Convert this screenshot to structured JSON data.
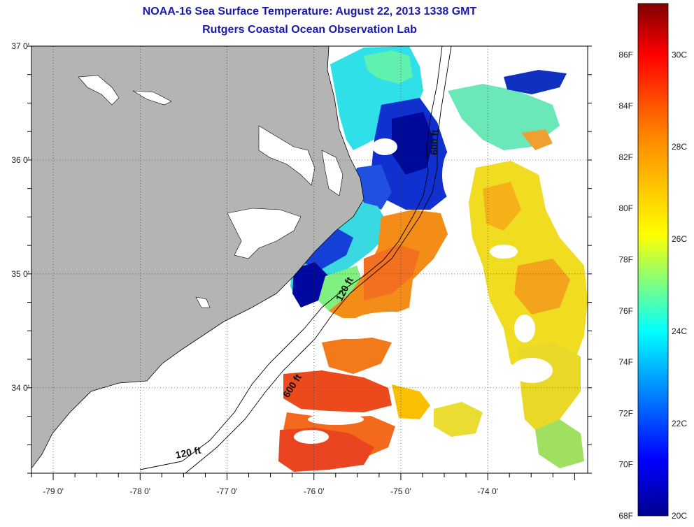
{
  "title": "NOAA-16 Sea Surface Temperature:  August 22, 2013 1338 GMT",
  "subtitle": "Rutgers Coastal Ocean Observation Lab",
  "map": {
    "lon_range": [
      -79.25,
      -72.85
    ],
    "lat_range": [
      33.25,
      37.0
    ],
    "lon_ticks": [
      {
        "value": -79,
        "label": "-79 0'"
      },
      {
        "value": -78,
        "label": "-78 0'"
      },
      {
        "value": -77,
        "label": "-77 0'"
      },
      {
        "value": -76,
        "label": "-76 0'"
      },
      {
        "value": -75,
        "label": "-75 0'"
      },
      {
        "value": -74,
        "label": "-74 0'"
      }
    ],
    "lat_ticks": [
      {
        "value": 37,
        "label": "37 0'"
      },
      {
        "value": 36,
        "label": "36 0'"
      },
      {
        "value": 35,
        "label": "35 0'"
      },
      {
        "value": 34,
        "label": "34 0'"
      }
    ],
    "grid": "dotted",
    "land_color": "#b4b4b4",
    "contours": [
      {
        "label": "120 ft"
      },
      {
        "label": "600 ft"
      }
    ],
    "contour_label_instances": [
      {
        "text": "120 ft"
      },
      {
        "text": "120 ft"
      },
      {
        "text": "600 ft"
      },
      {
        "text": "600 ft"
      }
    ]
  },
  "colorbar": {
    "min_f": 68,
    "max_f": 88,
    "fahrenheit_labels": [
      "86F",
      "84F",
      "82F",
      "80F",
      "78F",
      "76F",
      "74F",
      "72F",
      "70F",
      "68F"
    ],
    "celsius_labels": [
      "30C",
      "28C",
      "26C",
      "24C",
      "22C",
      "20C"
    ],
    "colors": [
      "#00008f",
      "#0000ff",
      "#007fff",
      "#00ffff",
      "#7fff7f",
      "#ffff00",
      "#ff7f00",
      "#ff0000",
      "#7f0000"
    ]
  }
}
